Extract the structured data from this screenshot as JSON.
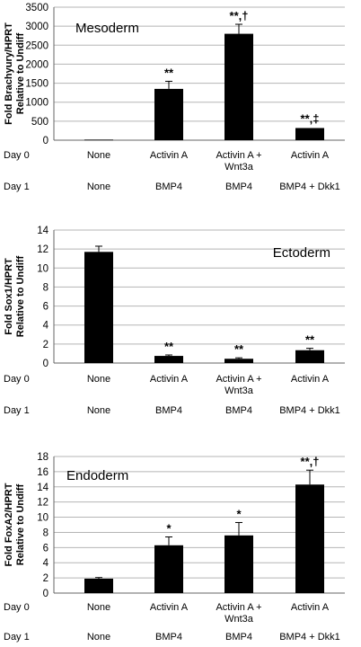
{
  "row_labels": {
    "day0": "Day 0",
    "day1": "Day 1"
  },
  "chart_data": [
    {
      "type": "bar",
      "title": "Mesoderm",
      "ylabel": "Fold Brachyury/HPRT Relative to Undiff",
      "ylabel_lines": [
        "Fold Brachyury/HPRT",
        "Relative to Undiff"
      ],
      "ylim": [
        0,
        3500
      ],
      "yticks": [
        "0",
        "500",
        "1000",
        "1500",
        "2000",
        "2500",
        "3000",
        "3500"
      ],
      "grid": true,
      "categories": [
        {
          "day0": [
            "None"
          ],
          "day1": "None"
        },
        {
          "day0": [
            "Activin A"
          ],
          "day1": "BMP4"
        },
        {
          "day0": [
            "Activin A +",
            "Wnt3a"
          ],
          "day1": "BMP4"
        },
        {
          "day0": [
            "Activin A"
          ],
          "day1": "BMP4 + Dkk1"
        }
      ],
      "values": [
        15,
        1350,
        2800,
        320
      ],
      "errors": [
        0,
        200,
        250,
        0
      ],
      "annotations": [
        "",
        "**",
        "**,†",
        "**,‡"
      ]
    },
    {
      "type": "bar",
      "title": "Ectoderm",
      "ylabel": "Fold Sox1/HPRT Relative to Undiff",
      "ylabel_lines": [
        "Fold Sox1/HPRT",
        "Relative to Undiff"
      ],
      "ylim": [
        0,
        14
      ],
      "yticks": [
        "0",
        "2",
        "4",
        "6",
        "8",
        "10",
        "12",
        "14"
      ],
      "grid": true,
      "categories": [
        {
          "day0": [
            "None"
          ],
          "day1": "None"
        },
        {
          "day0": [
            "Activin A"
          ],
          "day1": "BMP4"
        },
        {
          "day0": [
            "Activin A +",
            "Wnt3a"
          ],
          "day1": "BMP4"
        },
        {
          "day0": [
            "Activin A"
          ],
          "day1": "BMP4 + Dkk1"
        }
      ],
      "values": [
        11.7,
        0.75,
        0.45,
        1.35
      ],
      "errors": [
        0.6,
        0.1,
        0.1,
        0.2
      ],
      "annotations": [
        "",
        "**",
        "**",
        "**"
      ]
    },
    {
      "type": "bar",
      "title": "Endoderm",
      "ylabel": "Fold FoxA2/HPRT Relative to Undiff",
      "ylabel_lines": [
        "Fold FoxA2/HPRT",
        "Relative to Undiff"
      ],
      "ylim": [
        0,
        18
      ],
      "yticks": [
        "0",
        "2",
        "4",
        "6",
        "8",
        "10",
        "12",
        "14",
        "16",
        "18"
      ],
      "grid": true,
      "categories": [
        {
          "day0": [
            "None"
          ],
          "day1": "None"
        },
        {
          "day0": [
            "Activin A"
          ],
          "day1": "BMP4"
        },
        {
          "day0": [
            "Activin A +",
            "Wnt3a"
          ],
          "day1": "BMP4"
        },
        {
          "day0": [
            "Activin A"
          ],
          "day1": "BMP4 + Dkk1"
        }
      ],
      "values": [
        1.9,
        6.3,
        7.6,
        14.3
      ],
      "errors": [
        0.15,
        1.1,
        1.7,
        1.9
      ],
      "annotations": [
        "",
        "*",
        "*",
        "**,†"
      ]
    }
  ]
}
